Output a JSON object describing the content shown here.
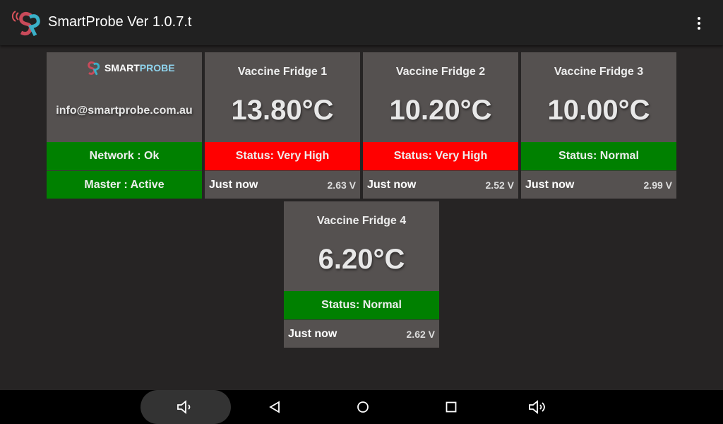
{
  "app": {
    "title": "SmartProbe Ver 1.0.7.t",
    "menu_icon": "more-vert-icon"
  },
  "info": {
    "brand_a": "SMART",
    "brand_b": "PROBE",
    "email": "info@smartprobe.com.au",
    "network": "Network : Ok",
    "master": "Master : Active"
  },
  "colors": {
    "normal": "#008000",
    "high": "#ff0000",
    "card": "#555150"
  },
  "probes": [
    {
      "name": "Vaccine Fridge 1",
      "temp": "13.80°C",
      "status": "Status: Very High",
      "time": "Just now",
      "voltage": "2.63 V",
      "color": "#ff0000"
    },
    {
      "name": "Vaccine Fridge 2",
      "temp": "10.20°C",
      "status": "Status: Very High",
      "time": "Just now",
      "voltage": "2.52 V",
      "color": "#ff0000"
    },
    {
      "name": "Vaccine Fridge 3",
      "temp": "10.00°C",
      "status": "Status: Normal",
      "time": "Just now",
      "voltage": "2.99 V",
      "color": "#008000"
    },
    {
      "name": "Vaccine Fridge 4",
      "temp": "6.20°C",
      "status": "Status: Normal",
      "time": "Just now",
      "voltage": "2.62 V",
      "color": "#008000"
    }
  ],
  "nav": [
    "volume-down-icon",
    "back-icon",
    "home-icon",
    "recents-icon",
    "volume-up-icon"
  ]
}
